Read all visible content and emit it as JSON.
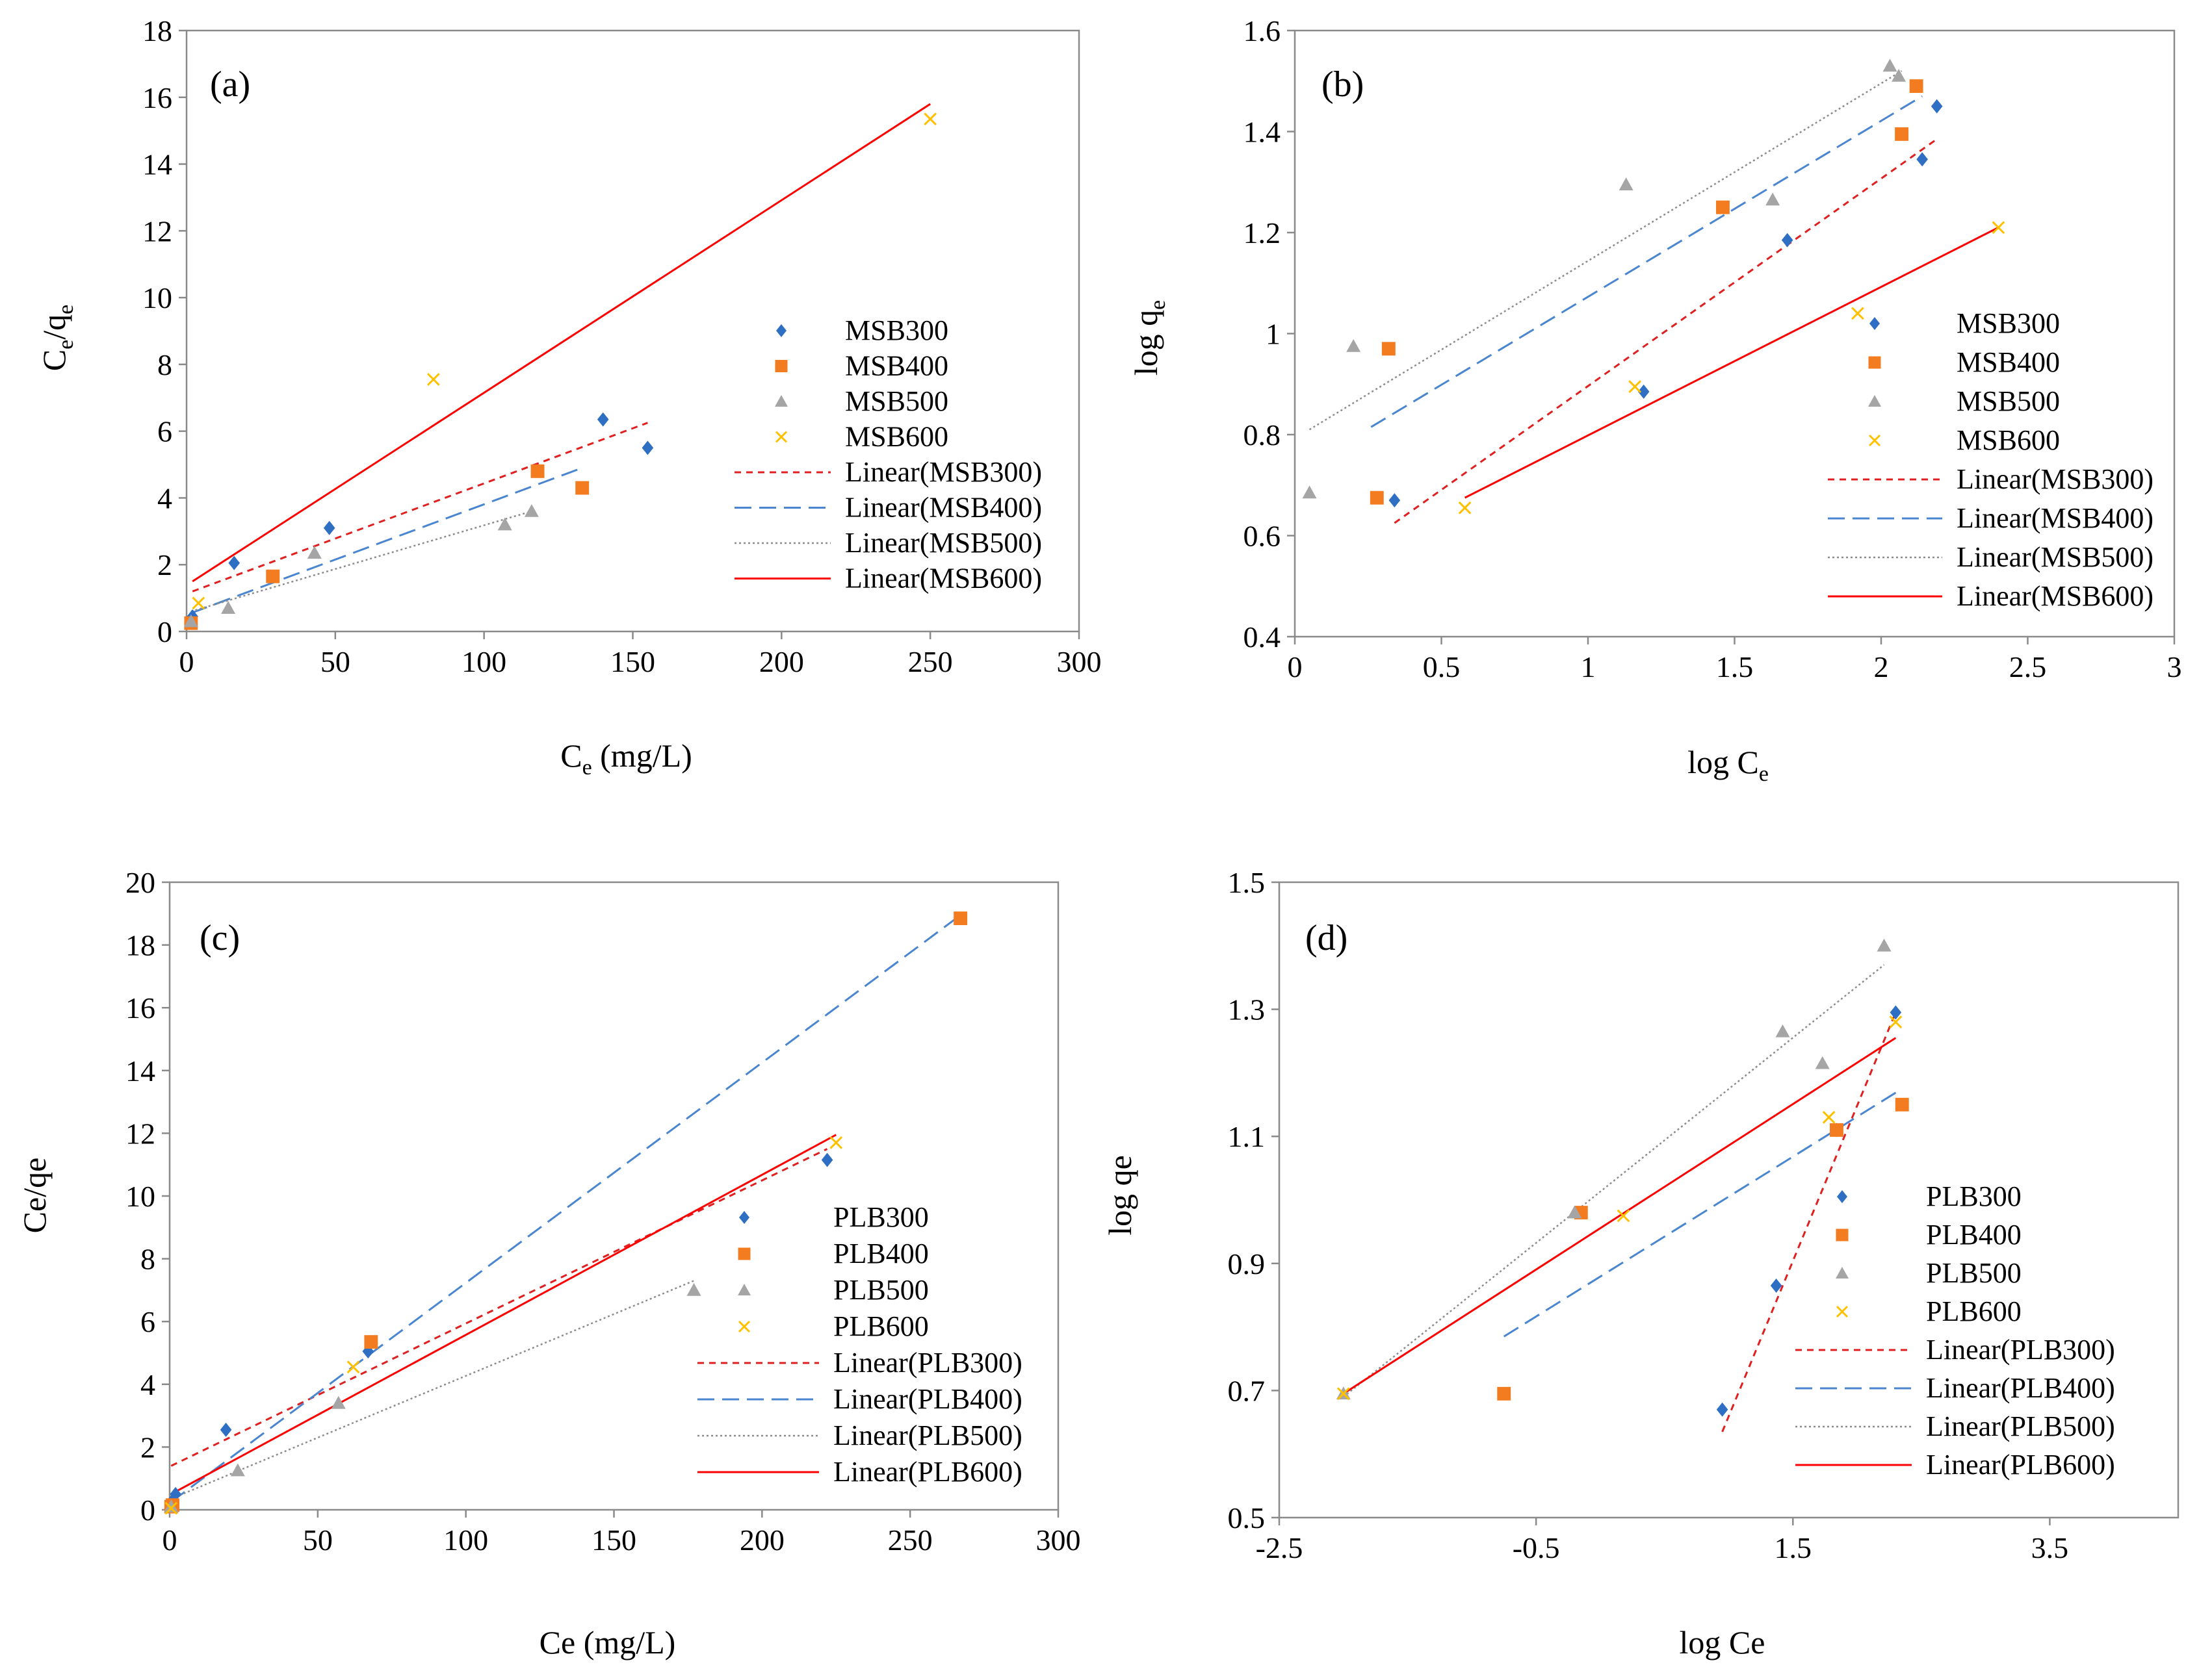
{
  "colors": {
    "s300": "#2e6fc4",
    "s400": "#f47c20",
    "s500": "#a5a5a5",
    "s600": "#ffc000",
    "l300": "#e02020",
    "l400": "#4a86d0",
    "l500": "#8c8c8c",
    "l600": "#ff0000"
  },
  "chart_data": [
    {
      "type": "scatter",
      "panel": "(a)",
      "xlabel_main": "C",
      "xlabel_sub": "e",
      "xlabel_rest": " (mg/L)",
      "ylabel_main": "C",
      "ylabel_sub1": "e",
      "ylabel_slash": "/q",
      "ylabel_sub2": "e",
      "xlim": [
        0,
        300
      ],
      "ylim": [
        0,
        18
      ],
      "xticks": [
        0,
        50,
        100,
        150,
        200,
        250,
        300
      ],
      "yticks": [
        0,
        2,
        4,
        6,
        8,
        10,
        12,
        14,
        16,
        18
      ],
      "legend_position": "right",
      "series": [
        {
          "name": "MSB300",
          "marker": "diamond",
          "points": [
            [
              2,
              0.45
            ],
            [
              16,
              2.05
            ],
            [
              48,
              3.1
            ],
            [
              140,
              6.35
            ],
            [
              155,
              5.5
            ]
          ]
        },
        {
          "name": "MSB400",
          "marker": "square",
          "points": [
            [
              1.5,
              0.25
            ],
            [
              29,
              1.65
            ],
            [
              118,
              4.8
            ],
            [
              133,
              4.3
            ]
          ]
        },
        {
          "name": "MSB500",
          "marker": "triangle",
          "points": [
            [
              1.5,
              0.3
            ],
            [
              14,
              0.7
            ],
            [
              43,
              2.35
            ],
            [
              107,
              3.2
            ],
            [
              116,
              3.6
            ]
          ]
        },
        {
          "name": "MSB600",
          "marker": "x",
          "points": [
            [
              4,
              0.85
            ],
            [
              83,
              7.55
            ],
            [
              250,
              15.35
            ]
          ]
        }
      ],
      "fits": [
        {
          "name": "Linear(MSB300)",
          "style": "short-dash",
          "from": [
            2,
            1.2
          ],
          "to": [
            155,
            6.25
          ]
        },
        {
          "name": "Linear(MSB400)",
          "style": "long-dash",
          "from": [
            1.5,
            0.55
          ],
          "to": [
            133,
            4.9
          ]
        },
        {
          "name": "Linear(MSB500)",
          "style": "dot",
          "from": [
            1.5,
            0.6
          ],
          "to": [
            116,
            3.6
          ]
        },
        {
          "name": "Linear(MSB600)",
          "style": "solid",
          "from": [
            2,
            1.5
          ],
          "to": [
            250,
            15.8
          ]
        }
      ]
    },
    {
      "type": "scatter",
      "panel": "(b)",
      "xlabel_main": "log C",
      "xlabel_sub": "e",
      "xlabel_rest": "",
      "ylabel_main": "log q",
      "ylabel_sub1": "e",
      "xlim": [
        0,
        3
      ],
      "ylim": [
        0.4,
        1.6
      ],
      "xticks": [
        0,
        0.5,
        1,
        1.5,
        2,
        2.5,
        3
      ],
      "xtick_labels": [
        "0",
        "0.5",
        "1",
        "1.5",
        "2",
        "2.5",
        "3"
      ],
      "yticks": [
        0.4,
        0.6,
        0.8,
        1.0,
        1.2,
        1.4,
        1.6
      ],
      "ytick_labels": [
        "0.4",
        "0.6",
        "0.8",
        "1",
        "1.2",
        "1.4",
        "1.6"
      ],
      "legend_position": "right",
      "series": [
        {
          "name": "MSB300",
          "marker": "diamond",
          "points": [
            [
              0.34,
              0.67
            ],
            [
              1.19,
              0.885
            ],
            [
              1.68,
              1.185
            ],
            [
              2.14,
              1.345
            ],
            [
              2.19,
              1.45
            ]
          ]
        },
        {
          "name": "MSB400",
          "marker": "square",
          "points": [
            [
              0.28,
              0.675
            ],
            [
              0.32,
              0.97
            ],
            [
              1.46,
              1.25
            ],
            [
              2.07,
              1.395
            ],
            [
              2.12,
              1.49
            ]
          ]
        },
        {
          "name": "MSB500",
          "marker": "triangle",
          "points": [
            [
              0.05,
              0.685
            ],
            [
              0.2,
              0.975
            ],
            [
              1.13,
              1.295
            ],
            [
              1.63,
              1.265
            ],
            [
              2.03,
              1.53
            ],
            [
              2.06,
              1.51
            ]
          ]
        },
        {
          "name": "MSB600",
          "marker": "x",
          "points": [
            [
              0.58,
              0.655
            ],
            [
              1.16,
              0.895
            ],
            [
              1.92,
              1.04
            ],
            [
              2.4,
              1.21
            ]
          ]
        }
      ],
      "fits": [
        {
          "name": "Linear(MSB300)",
          "style": "short-dash",
          "from": [
            0.34,
            0.625
          ],
          "to": [
            2.19,
            1.385
          ]
        },
        {
          "name": "Linear(MSB400)",
          "style": "long-dash",
          "from": [
            0.26,
            0.815
          ],
          "to": [
            2.14,
            1.47
          ]
        },
        {
          "name": "Linear(MSB500)",
          "style": "dot",
          "from": [
            0.05,
            0.81
          ],
          "to": [
            2.07,
            1.52
          ]
        },
        {
          "name": "Linear(MSB600)",
          "style": "solid",
          "from": [
            0.58,
            0.675
          ],
          "to": [
            2.4,
            1.21
          ]
        }
      ]
    },
    {
      "type": "scatter",
      "panel": "(c)",
      "xlabel_main": "Ce (mg/L)",
      "xlabel_sub": "",
      "xlabel_rest": "",
      "ylabel_main": "Ce/qe",
      "xlim": [
        0,
        300
      ],
      "ylim": [
        0,
        20
      ],
      "xticks": [
        0,
        50,
        100,
        150,
        200,
        250,
        300
      ],
      "yticks": [
        0,
        2,
        4,
        6,
        8,
        10,
        12,
        14,
        16,
        18,
        20
      ],
      "legend_position": "right",
      "series": [
        {
          "name": "PLB300",
          "marker": "diamond",
          "points": [
            [
              1,
              0.3
            ],
            [
              2,
              0.5
            ],
            [
              19,
              2.55
            ],
            [
              67,
              5.05
            ],
            [
              222,
              11.15
            ]
          ]
        },
        {
          "name": "PLB400",
          "marker": "square",
          "points": [
            [
              0.5,
              0.1
            ],
            [
              1,
              0.15
            ],
            [
              68,
              5.35
            ],
            [
              267,
              18.85
            ]
          ]
        },
        {
          "name": "PLB500",
          "marker": "triangle",
          "points": [
            [
              0.5,
              0.1
            ],
            [
              23,
              1.25
            ],
            [
              57,
              3.4
            ],
            [
              177,
              7.0
            ]
          ]
        },
        {
          "name": "PLB600",
          "marker": "x",
          "points": [
            [
              0.5,
              0.05
            ],
            [
              62,
              4.55
            ],
            [
              225,
              11.7
            ]
          ]
        }
      ],
      "fits": [
        {
          "name": "Linear(PLB300)",
          "style": "short-dash",
          "from": [
            0.5,
            1.4
          ],
          "to": [
            222,
            11.5
          ]
        },
        {
          "name": "Linear(PLB400)",
          "style": "long-dash",
          "from": [
            0.5,
            0.25
          ],
          "to": [
            267,
            18.95
          ]
        },
        {
          "name": "Linear(PLB500)",
          "style": "dot",
          "from": [
            0.5,
            0.35
          ],
          "to": [
            177,
            7.3
          ]
        },
        {
          "name": "Linear(PLB600)",
          "style": "solid",
          "from": [
            0.5,
            0.5
          ],
          "to": [
            225,
            11.95
          ]
        }
      ]
    },
    {
      "type": "scatter",
      "panel": "(d)",
      "xlabel_main": "log Ce",
      "xlabel_sub": "",
      "xlabel_rest": "",
      "ylabel_main": "log qe",
      "xlim": [
        -2.5,
        4.5
      ],
      "ylim": [
        0.5,
        1.5
      ],
      "xticks": [
        -2.5,
        -0.5,
        1.5,
        3.5
      ],
      "xtick_labels": [
        "-2.5",
        "-0.5",
        "1.5",
        "3.5"
      ],
      "yticks": [
        0.5,
        0.7,
        0.9,
        1.1,
        1.3,
        1.5
      ],
      "ytick_labels": [
        "0.5",
        "0.7",
        "0.9",
        "1.1",
        "1.3",
        "1.5"
      ],
      "legend_position": "right",
      "series": [
        {
          "name": "PLB300",
          "marker": "diamond",
          "points": [
            [
              0.95,
              0.67
            ],
            [
              1.37,
              0.865
            ],
            [
              1.84,
              1.11
            ],
            [
              2.3,
              1.295
            ]
          ]
        },
        {
          "name": "PLB400",
          "marker": "square",
          "points": [
            [
              -0.75,
              0.695
            ],
            [
              -0.15,
              0.98
            ],
            [
              1.84,
              1.11
            ],
            [
              2.35,
              1.15
            ]
          ]
        },
        {
          "name": "PLB500",
          "marker": "triangle",
          "points": [
            [
              -2.0,
              0.695
            ],
            [
              -0.2,
              0.98
            ],
            [
              1.42,
              1.265
            ],
            [
              1.73,
              1.215
            ],
            [
              2.21,
              1.4
            ]
          ]
        },
        {
          "name": "PLB600",
          "marker": "x",
          "points": [
            [
              -2.0,
              0.695
            ],
            [
              0.18,
              0.975
            ],
            [
              1.78,
              1.13
            ],
            [
              2.3,
              1.28
            ]
          ]
        }
      ],
      "fits": [
        {
          "name": "Linear(PLB300)",
          "style": "short-dash",
          "from": [
            0.95,
            0.635
          ],
          "to": [
            2.3,
            1.295
          ]
        },
        {
          "name": "Linear(PLB400)",
          "style": "long-dash",
          "from": [
            -0.75,
            0.785
          ],
          "to": [
            2.35,
            1.175
          ]
        },
        {
          "name": "Linear(PLB500)",
          "style": "dot",
          "from": [
            -2.0,
            0.69
          ],
          "to": [
            2.21,
            1.37
          ]
        },
        {
          "name": "Linear(PLB600)",
          "style": "solid",
          "from": [
            -2.0,
            0.695
          ],
          "to": [
            2.3,
            1.255
          ]
        }
      ]
    }
  ]
}
